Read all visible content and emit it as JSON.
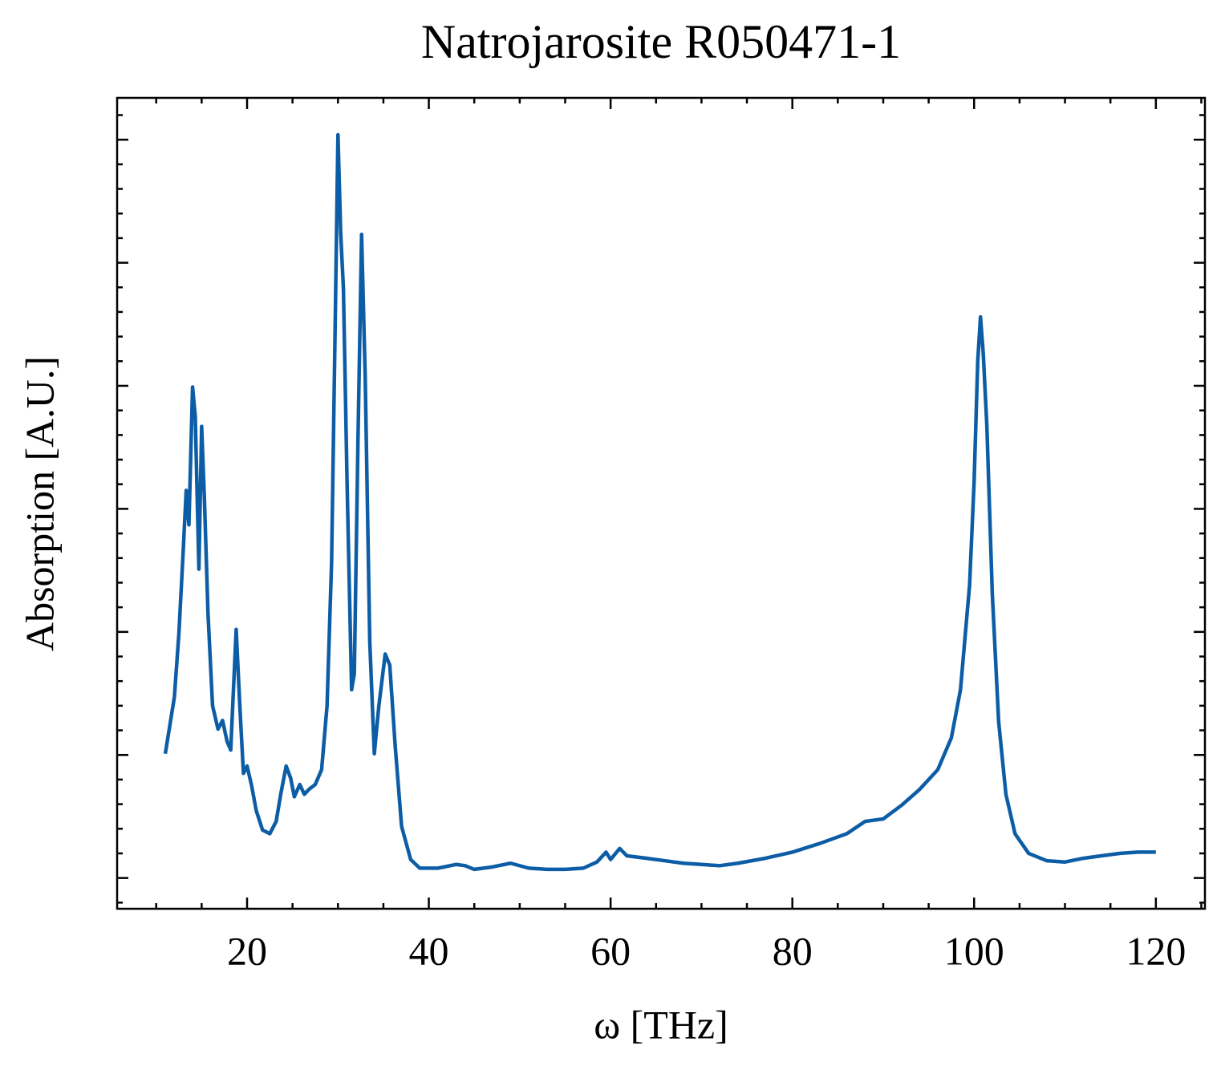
{
  "chart_data": {
    "type": "line",
    "title": "Natrojarosite R050471-1",
    "x_label": "ω [THz]",
    "y_label": "Absorption [A.U.]",
    "x": [
      11.0,
      11.5,
      12,
      12.5,
      13,
      13.3,
      13.6,
      14.0,
      14.3,
      14.7,
      15.0,
      15.3,
      15.7,
      16.2,
      16.8,
      17.3,
      17.8,
      18.2,
      18.8,
      19.2,
      19.6,
      20.0,
      20.5,
      21.0,
      21.7,
      22.5,
      23.2,
      23.7,
      24.3,
      24.8,
      25.2,
      25.8,
      26.3,
      26.8,
      27.5,
      28.2,
      28.8,
      29.3,
      29.7,
      30.0,
      30.3,
      30.6,
      31.0,
      31.5,
      31.8,
      32.2,
      32.6,
      33.0,
      33.5,
      34.0,
      34.5,
      35.2,
      35.7,
      36.3,
      37.0,
      38.0,
      39.0,
      41.0,
      43.0,
      44.0,
      45.0,
      47.0,
      49.0,
      51.0,
      53.0,
      55.0,
      57.0,
      58.5,
      59.5,
      60.0,
      61.0,
      61.8,
      64.0,
      66.0,
      68.0,
      70.0,
      72.0,
      74.0,
      77.0,
      80.0,
      83.0,
      86.0,
      88.0,
      90.0,
      92.0,
      94.0,
      96.0,
      97.5,
      98.5,
      99.5,
      100.0,
      100.4,
      100.7,
      101.0,
      101.4,
      102.0,
      102.7,
      103.5,
      104.5,
      106.0,
      108.0,
      110.0,
      112.0,
      114.0,
      116.0,
      118.0,
      120.0
    ],
    "series": [
      {
        "name": "Natrojarosite R050471-1",
        "color": "#0c5da5",
        "values": [
          1.01,
          1.24,
          1.47,
          1.99,
          2.7,
          3.15,
          2.87,
          3.99,
          3.75,
          2.51,
          3.67,
          3.09,
          2.15,
          1.4,
          1.21,
          1.28,
          1.11,
          1.04,
          2.02,
          1.4,
          0.85,
          0.91,
          0.75,
          0.55,
          0.39,
          0.36,
          0.46,
          0.68,
          0.91,
          0.81,
          0.66,
          0.76,
          0.68,
          0.72,
          0.76,
          0.88,
          1.4,
          2.57,
          4.53,
          6.04,
          5.24,
          4.79,
          3.22,
          1.53,
          1.66,
          3.55,
          5.23,
          4.07,
          1.92,
          1.01,
          1.4,
          1.82,
          1.73,
          1.07,
          0.42,
          0.15,
          0.08,
          0.08,
          0.11,
          0.1,
          0.07,
          0.09,
          0.12,
          0.08,
          0.07,
          0.07,
          0.08,
          0.13,
          0.21,
          0.15,
          0.24,
          0.18,
          0.16,
          0.14,
          0.12,
          0.11,
          0.1,
          0.12,
          0.16,
          0.21,
          0.28,
          0.36,
          0.46,
          0.48,
          0.59,
          0.72,
          0.88,
          1.14,
          1.53,
          2.38,
          3.22,
          4.2,
          4.56,
          4.27,
          3.68,
          2.31,
          1.27,
          0.68,
          0.36,
          0.2,
          0.14,
          0.13,
          0.16,
          0.18,
          0.2,
          0.21,
          0.21
        ]
      }
    ],
    "xlim": [
      5.7,
      125.4
    ],
    "xticks": [
      20,
      40,
      60,
      80,
      100,
      120
    ],
    "ylim": [
      -0.25,
      6.34
    ],
    "yticks": [
      0,
      1,
      2,
      3,
      4,
      5,
      6
    ],
    "y_tick_labels": false,
    "x_minor_divisions": 4,
    "y_minor_divisions": 5,
    "grid": false
  }
}
